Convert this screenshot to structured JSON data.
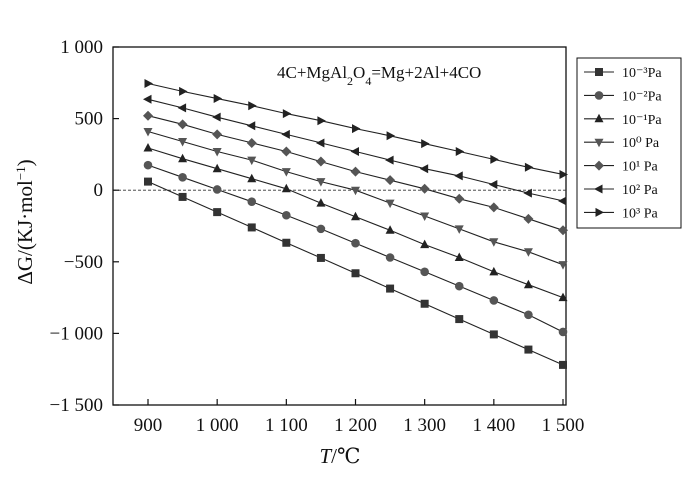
{
  "chart_data": {
    "type": "line",
    "title": "",
    "annotation": {
      "parts": [
        {
          "t": "4C+MgAl",
          "sub": false
        },
        {
          "t": "2",
          "sub": true
        },
        {
          "t": "O",
          "sub": false
        },
        {
          "t": "4",
          "sub": true
        },
        {
          "t": "=Mg+2Al+4CO",
          "sub": false
        }
      ]
    },
    "xlabel": {
      "italic": "T",
      "rest": "/℃"
    },
    "ylabel": {
      "prefix": "ΔG/(KJ·mol",
      "sup": "−1",
      "suffix": ")"
    },
    "xlim": [
      860,
      1500
    ],
    "ylim": [
      -1500,
      1000
    ],
    "x_ticks": [
      900,
      1000,
      1100,
      1200,
      1300,
      1400,
      1500
    ],
    "x_tick_labels": [
      "900",
      "1 000",
      "1 100",
      "1 200",
      "1 300",
      "1 400",
      "1 500"
    ],
    "y_ticks": [
      -1500,
      -1000,
      -500,
      0,
      500,
      1000
    ],
    "y_tick_labels": [
      "−1 500",
      "−1 000",
      "−500",
      "0",
      "500",
      "1 000"
    ],
    "reference_line": {
      "y": 0,
      "style": "dashed"
    },
    "grid": false,
    "legend_position": "top-right",
    "x": [
      900,
      950,
      1000,
      1050,
      1100,
      1150,
      1200,
      1250,
      1300,
      1350,
      1400,
      1450,
      1500
    ],
    "series": [
      {
        "name": "10⁻³Pa",
        "marker": "square",
        "values": [
          60,
          -47,
          -153,
          -260,
          -367,
          -473,
          -580,
          -687,
          -793,
          -900,
          -1007,
          -1113,
          -1220
        ]
      },
      {
        "name": "10⁻²Pa",
        "marker": "circle",
        "values": [
          175,
          90,
          5,
          -80,
          -175,
          -270,
          -370,
          -470,
          -570,
          -670,
          -770,
          -870,
          -990
        ]
      },
      {
        "name": "10⁻¹Pa",
        "marker": "triangle-up",
        "values": [
          295,
          220,
          150,
          80,
          10,
          -90,
          -185,
          -280,
          -380,
          -470,
          -570,
          -660,
          -750
        ]
      },
      {
        "name": "10⁰ Pa",
        "marker": "triangle-down",
        "values": [
          410,
          340,
          270,
          210,
          130,
          60,
          0,
          -90,
          -180,
          -270,
          -360,
          -430,
          -520
        ]
      },
      {
        "name": "10¹ Pa",
        "marker": "diamond",
        "values": [
          520,
          460,
          390,
          330,
          270,
          200,
          130,
          70,
          10,
          -60,
          -120,
          -200,
          -280
        ]
      },
      {
        "name": "10² Pa",
        "marker": "triangle-left",
        "values": [
          635,
          575,
          510,
          450,
          390,
          330,
          270,
          210,
          150,
          100,
          40,
          -20,
          -75
        ]
      },
      {
        "name": "10³ Pa",
        "marker": "triangle-right",
        "values": [
          745,
          690,
          640,
          590,
          535,
          485,
          430,
          380,
          325,
          270,
          215,
          160,
          110
        ]
      }
    ]
  }
}
